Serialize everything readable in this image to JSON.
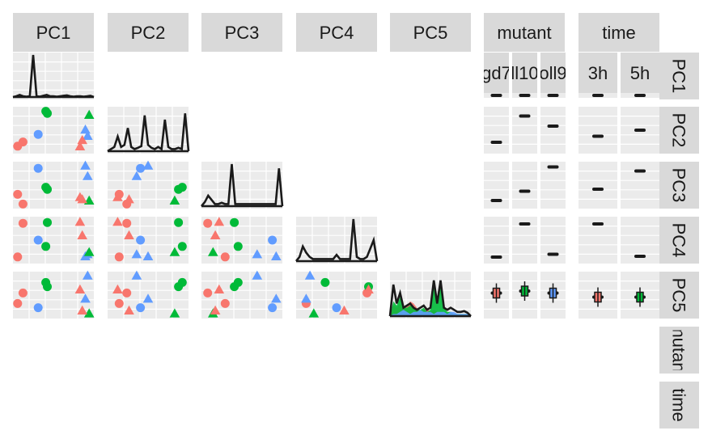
{
  "chart_data": {
    "type": "scatter",
    "kind": "pairs-plot",
    "columns": [
      "PC1",
      "PC2",
      "PC3",
      "PC4",
      "PC5",
      "mutant",
      "time"
    ],
    "row_labels": [
      "PC1",
      "PC2",
      "PC3",
      "PC4",
      "PC5",
      "mutant",
      "time"
    ],
    "mutant_levels": [
      "gd7",
      "ll10",
      "oll9"
    ],
    "time_levels": [
      "3h",
      "5h"
    ],
    "colors": {
      "group_red": "#F8766D",
      "group_green": "#00BA38",
      "group_blue": "#619CFF",
      "strip_bg": "#D9D9D9",
      "panel_bg": "#EBEBEB",
      "grid": "#FFFFFF",
      "ink": "#1a1a1a"
    },
    "samples": [
      {
        "group": "red",
        "shape": "circle",
        "pc": [
          0.03,
          0.12,
          0.28,
          0.1,
          0.3
        ]
      },
      {
        "group": "red",
        "shape": "circle",
        "pc": [
          0.1,
          0.22,
          0.05,
          0.9,
          0.55
        ]
      },
      {
        "group": "green",
        "shape": "circle",
        "pc": [
          0.4,
          0.95,
          0.45,
          0.35,
          0.8
        ]
      },
      {
        "group": "blue",
        "shape": "circle",
        "pc": [
          0.3,
          0.4,
          0.9,
          0.5,
          0.2
        ]
      },
      {
        "group": "green",
        "shape": "circle",
        "pc": [
          0.42,
          0.9,
          0.4,
          0.92,
          0.7
        ]
      },
      {
        "group": "red",
        "shape": "triangle",
        "pc": [
          0.85,
          0.1,
          0.2,
          0.92,
          0.62
        ]
      },
      {
        "group": "blue",
        "shape": "triangle",
        "pc": [
          0.95,
          0.35,
          0.7,
          0.15,
          0.95
        ]
      },
      {
        "group": "blue",
        "shape": "triangle",
        "pc": [
          0.92,
          0.5,
          0.95,
          0.1,
          0.4
        ]
      },
      {
        "group": "green",
        "shape": "triangle",
        "pc": [
          0.97,
          0.85,
          0.12,
          0.2,
          0.05
        ]
      },
      {
        "group": "red",
        "shape": "triangle",
        "pc": [
          0.88,
          0.25,
          0.15,
          0.6,
          0.12
        ]
      }
    ],
    "densities": [
      [
        0.0,
        0.02,
        0.05,
        0.02,
        0.01,
        0.02,
        1.0,
        0.02,
        0.01,
        0.03,
        0.05,
        0.02,
        0.02,
        0.01,
        0.02,
        0.03,
        0.04,
        0.02,
        0.01,
        0.02,
        0.02,
        0.01,
        0.02,
        0.03,
        0.0
      ],
      [
        0.0,
        0.05,
        0.1,
        0.35,
        0.1,
        0.15,
        0.55,
        0.1,
        0.05,
        0.08,
        0.12,
        0.85,
        0.15,
        0.08,
        0.05,
        0.1,
        0.05,
        0.75,
        0.1,
        0.05,
        0.05,
        0.08,
        0.05,
        0.9,
        0.0
      ],
      [
        0.0,
        0.1,
        0.25,
        0.15,
        0.05,
        0.05,
        0.08,
        0.05,
        0.05,
        1.0,
        0.05,
        0.05,
        0.05,
        0.05,
        0.05,
        0.05,
        0.05,
        0.05,
        0.05,
        0.05,
        0.05,
        0.05,
        0.05,
        0.9,
        0.0
      ],
      [
        0.0,
        0.1,
        0.35,
        0.2,
        0.1,
        0.05,
        0.05,
        0.05,
        0.05,
        0.05,
        0.05,
        0.05,
        0.15,
        0.05,
        0.05,
        0.05,
        0.05,
        1.0,
        0.1,
        0.05,
        0.05,
        0.1,
        0.3,
        0.5,
        0.0
      ],
      [
        0.0,
        0.75,
        0.3,
        0.55,
        0.2,
        0.25,
        0.3,
        0.2,
        0.15,
        0.2,
        0.25,
        0.15,
        0.2,
        0.85,
        0.3,
        0.85,
        0.2,
        0.15,
        0.2,
        0.15,
        0.1,
        0.1,
        0.12,
        0.08,
        0.0
      ]
    ],
    "pc5_group_densities": {
      "red": [
        0.0,
        0.25,
        0.2,
        0.3,
        0.15,
        0.25,
        0.35,
        0.3,
        0.2,
        0.1,
        0.15,
        0.2,
        0.1,
        0.15,
        0.1,
        0.05,
        0.05,
        0.05,
        0.02,
        0.02,
        0.02,
        0.02,
        0.02,
        0.02,
        0.0
      ],
      "green": [
        0.0,
        0.35,
        0.25,
        0.45,
        0.2,
        0.2,
        0.25,
        0.2,
        0.15,
        0.15,
        0.2,
        0.1,
        0.15,
        0.7,
        0.3,
        0.75,
        0.2,
        0.1,
        0.1,
        0.05,
        0.05,
        0.05,
        0.05,
        0.05,
        0.0
      ],
      "blue": [
        0.0,
        0.05,
        0.05,
        0.1,
        0.15,
        0.1,
        0.05,
        0.1,
        0.1,
        0.15,
        0.1,
        0.1,
        0.1,
        0.05,
        0.1,
        0.1,
        0.1,
        0.05,
        0.1,
        0.1,
        0.05,
        0.05,
        0.05,
        0.05,
        0.0
      ]
    },
    "box_medians": {
      "mutant": [
        [
          0.55,
          0.5,
          0.25
        ],
        [
          0.2,
          0.85,
          0.6
        ],
        [
          0.12,
          0.35,
          0.95
        ],
        [
          0.08,
          0.9,
          0.15
        ],
        [
          0.55,
          0.6,
          0.55
        ]
      ],
      "time": [
        [
          0.85,
          0.95
        ],
        [
          0.35,
          0.5
        ],
        [
          0.4,
          0.85
        ],
        [
          0.9,
          0.1
        ],
        [
          0.45,
          0.45
        ]
      ]
    },
    "title": "",
    "xlabel": "",
    "ylabel": ""
  }
}
